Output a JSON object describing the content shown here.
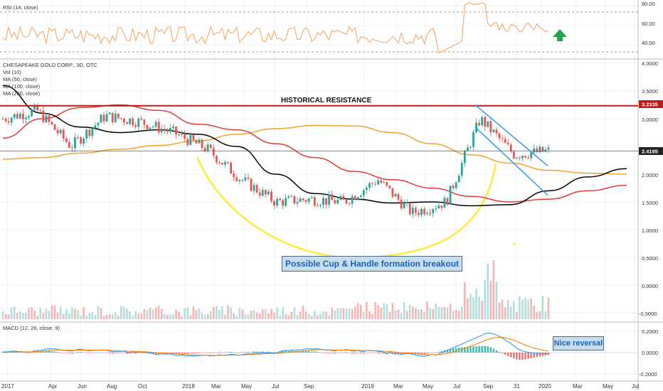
{
  "rsi": {
    "label": "RSI (14, close)",
    "ticks": [
      "80.00",
      "60.00",
      "40.00"
    ],
    "levels": [
      80,
      60,
      40
    ],
    "upper_band": 70,
    "lower_band": 30
  },
  "main": {
    "title": "CHESAPEAKE GOLD CORP., 3D, OTC",
    "legend": [
      "Vol (10)",
      "MA (50, close)",
      "MA (100, close)",
      "MA (200, close)"
    ],
    "ticks": [
      "4.0000",
      "3.5000",
      "3.0000",
      "2.5000",
      "2.0000",
      "1.5000",
      "1.0000",
      "0.5000",
      "0.0000",
      "-0.5000"
    ],
    "tick_values": [
      4.0,
      3.5,
      3.0,
      2.5,
      2.0,
      1.5,
      1.0,
      0.5,
      0.0,
      -0.5
    ],
    "resistance_value": "3.2335",
    "last_price": "2.4195",
    "resistance_label": "HISTORICAL RESISTANCE",
    "cup_label": "Possible Cup & Handle formation breakout"
  },
  "macd": {
    "label": "MACD (12, 26, close, 9)",
    "ticks": [
      "0.2000",
      "0.0000",
      "-0.2000"
    ],
    "tick_values": [
      0.2,
      0.0,
      -0.2
    ],
    "reversal_label": "Nice reversal"
  },
  "x_axis": [
    "2017",
    "Apr",
    "Jun",
    "Aug",
    "Oct",
    "2018",
    "Mar",
    "May",
    "Jul",
    "Sep",
    "2019",
    "Mar",
    "May",
    "Jul",
    "Sep",
    "31",
    "2020",
    "Mar",
    "May",
    "Jul"
  ],
  "colors": {
    "up": "#26a69a",
    "down": "#ef5350",
    "ma50": "#000000",
    "ma100": "#e53935",
    "ma200": "#f4a22d",
    "resistance": "#b71c1c",
    "channel": "#2196f3",
    "cup": "#ffeb3b",
    "rsi": "#f5a25d",
    "arrow": "#1fa54a"
  },
  "chart_data": {
    "type": "line",
    "ticker": "CHESAPEAKE GOLD CORP., 3D, OTC",
    "x": [
      "2017-01",
      "2017-04",
      "2017-06",
      "2017-08",
      "2017-10",
      "2018-01",
      "2018-03",
      "2018-05",
      "2018-07",
      "2018-09",
      "2019-01",
      "2019-03",
      "2019-05",
      "2019-07",
      "2019-09",
      "2019-10-31",
      "2020-01"
    ],
    "series": [
      {
        "name": "close",
        "values": [
          3.0,
          3.15,
          2.5,
          3.05,
          2.95,
          2.75,
          2.45,
          1.9,
          1.5,
          1.55,
          1.5,
          1.9,
          1.3,
          1.5,
          3.0,
          2.35,
          2.42
        ]
      },
      {
        "name": "MA (50, close)",
        "values": [
          3.6,
          3.1,
          2.85,
          2.75,
          2.8,
          2.72,
          2.5,
          2.0,
          1.65,
          1.55,
          1.48,
          1.5,
          1.43,
          1.45,
          1.7,
          1.95,
          2.1
        ]
      },
      {
        "name": "MA (100, close)",
        "values": [
          2.65,
          3.0,
          3.2,
          3.25,
          3.15,
          2.9,
          2.8,
          2.55,
          2.3,
          2.05,
          1.9,
          1.75,
          1.6,
          1.5,
          1.55,
          1.7,
          1.8
        ]
      },
      {
        "name": "MA (200, close)",
        "values": [
          2.27,
          2.3,
          2.38,
          2.45,
          2.52,
          2.6,
          2.72,
          2.82,
          2.88,
          2.87,
          2.75,
          2.55,
          2.35,
          2.2,
          2.07,
          2.02,
          2.0
        ]
      }
    ],
    "resistance": 3.2335,
    "last": 2.4195,
    "ylim": [
      -0.5,
      4.0
    ],
    "rsi_ylim": [
      30,
      90
    ],
    "macd_ylim": [
      -0.25,
      0.25
    ]
  }
}
